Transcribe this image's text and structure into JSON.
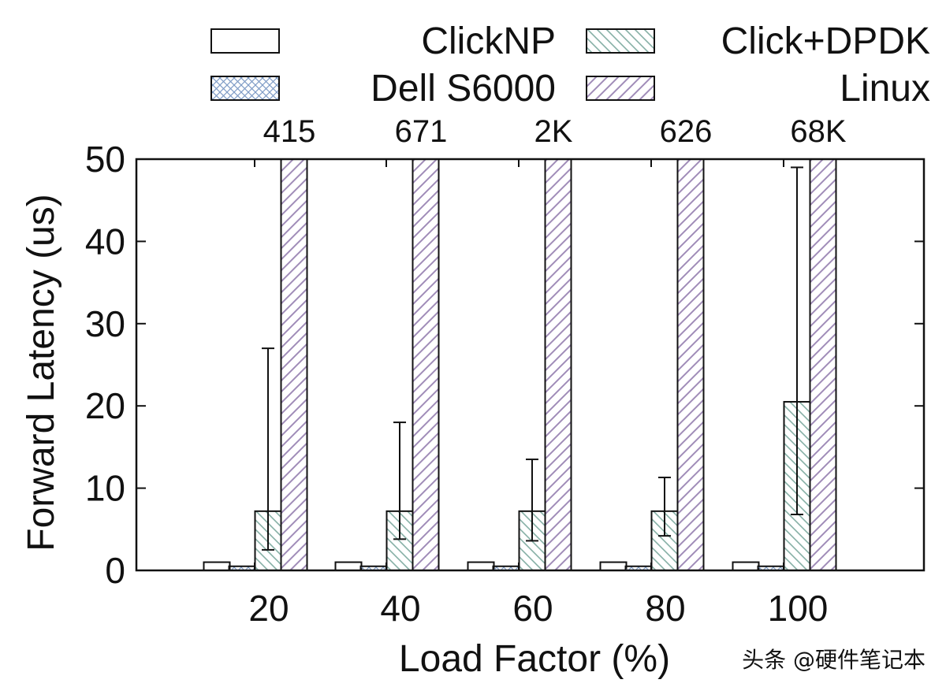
{
  "chart_data": {
    "type": "bar",
    "xlabel": "Load Factor (%)",
    "ylabel": "Forward Latency (us)",
    "ylim": [
      0,
      50
    ],
    "yticks": [
      0,
      10,
      20,
      30,
      40,
      50
    ],
    "categories": [
      "20",
      "40",
      "60",
      "80",
      "100"
    ],
    "grid": false,
    "legend_placement": "top",
    "series": [
      {
        "name": "ClickNP",
        "values": [
          1,
          1,
          1,
          1,
          1
        ],
        "color": "#ffffff",
        "pattern": "none"
      },
      {
        "name": "Dell S6000",
        "values": [
          0.5,
          0.5,
          0.5,
          0.5,
          0.5
        ],
        "color": "#7f9cc6",
        "pattern": "crosshatch"
      },
      {
        "name": "Click+DPDK",
        "values": [
          7.2,
          7.2,
          7.2,
          7.2,
          20.5
        ],
        "color": "#86b0a6",
        "pattern": "backslash",
        "err_low": [
          2.5,
          3.8,
          3.6,
          4.2,
          6.8
        ],
        "err_high": [
          27,
          18,
          13.5,
          11.3,
          49
        ]
      },
      {
        "name": "Linux",
        "values": [
          415,
          671,
          2000,
          626,
          68000
        ],
        "color": "#a08cb8",
        "pattern": "slash",
        "value_labels": [
          "415",
          "671",
          "2K",
          "626",
          "68K"
        ]
      }
    ]
  },
  "watermark": "头条 @硬件笔记本"
}
